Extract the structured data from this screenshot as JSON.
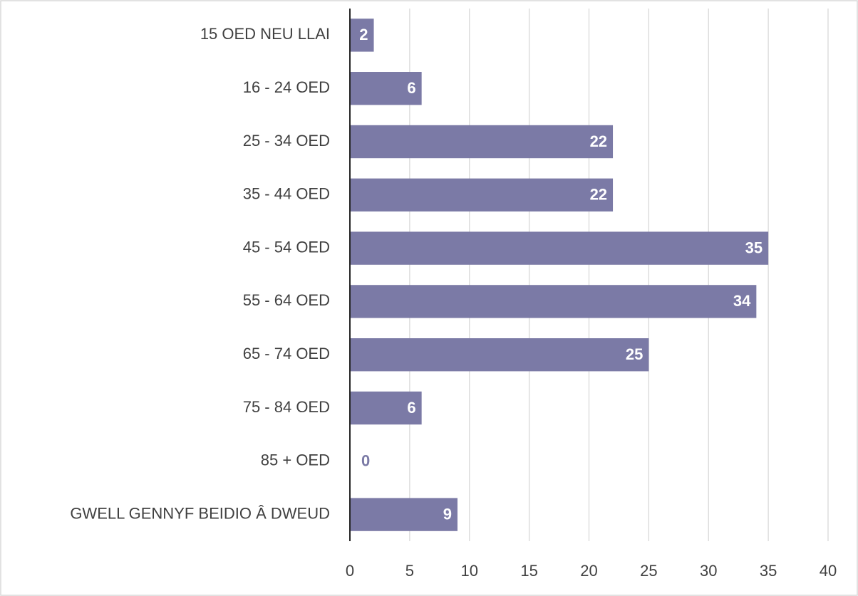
{
  "chart_data": {
    "type": "bar",
    "orientation": "horizontal",
    "categories": [
      "15 OED NEU LLAI",
      "16 - 24 OED",
      "25 - 34 OED",
      "35 - 44 OED",
      "45 - 54 OED",
      "55 - 64 OED",
      "65 - 74 OED",
      "75 - 84 OED",
      "85 + OED",
      "GWELL GENNYF BEIDIO Â DWEUD"
    ],
    "values": [
      2,
      6,
      22,
      22,
      35,
      34,
      25,
      6,
      0,
      9
    ],
    "color": "#7b7aa6",
    "xlim": [
      0,
      40
    ],
    "xticks": [
      0,
      5,
      10,
      15,
      20,
      25,
      30,
      35,
      40
    ],
    "grid": true
  }
}
